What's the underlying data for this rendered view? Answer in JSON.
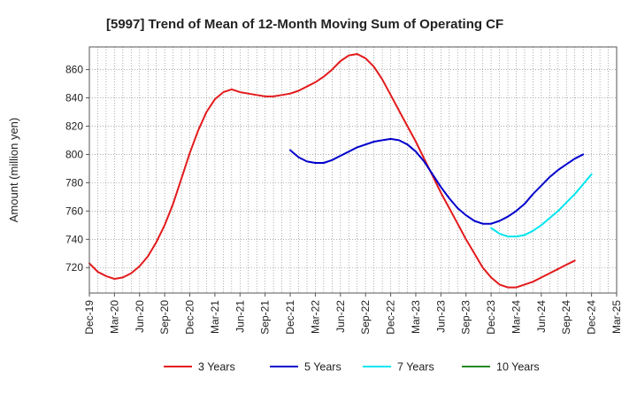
{
  "chart_data": {
    "type": "line",
    "title": "[5997]  Trend of Mean of 12-Month Moving Sum of Operating CF",
    "xlabel": "",
    "ylabel": "Amount (million yen)",
    "ylim": [
      702,
      876
    ],
    "yticks": [
      720,
      740,
      760,
      780,
      800,
      820,
      840,
      860
    ],
    "grid": true,
    "legend_position": "bottom",
    "x_tick_labels": [
      "Dec-19",
      "Mar-20",
      "Jun-20",
      "Sep-20",
      "Dec-20",
      "Mar-21",
      "Jun-21",
      "Sep-21",
      "Dec-21",
      "Mar-22",
      "Jun-22",
      "Sep-22",
      "Dec-22",
      "Mar-23",
      "Jun-23",
      "Sep-23",
      "Dec-23",
      "Mar-24",
      "Jun-24",
      "Sep-24",
      "Dec-24",
      "Mar-25"
    ],
    "x_months": [
      "2019-12",
      "2020-01",
      "2020-02",
      "2020-03",
      "2020-04",
      "2020-05",
      "2020-06",
      "2020-07",
      "2020-08",
      "2020-09",
      "2020-10",
      "2020-11",
      "2020-12",
      "2021-01",
      "2021-02",
      "2021-03",
      "2021-04",
      "2021-05",
      "2021-06",
      "2021-07",
      "2021-08",
      "2021-09",
      "2021-10",
      "2021-11",
      "2021-12",
      "2022-01",
      "2022-02",
      "2022-03",
      "2022-04",
      "2022-05",
      "2022-06",
      "2022-07",
      "2022-08",
      "2022-09",
      "2022-10",
      "2022-11",
      "2022-12",
      "2023-01",
      "2023-02",
      "2023-03",
      "2023-04",
      "2023-05",
      "2023-06",
      "2023-07",
      "2023-08",
      "2023-09",
      "2023-10",
      "2023-11",
      "2023-12",
      "2024-01",
      "2024-02",
      "2024-03",
      "2024-04",
      "2024-05",
      "2024-06",
      "2024-07",
      "2024-08",
      "2024-09",
      "2024-10",
      "2024-11",
      "2024-12"
    ],
    "series": [
      {
        "name": "3 Years",
        "color": "#e31a1c",
        "start_index": 0,
        "values": [
          723,
          717,
          714,
          712,
          713,
          716,
          721,
          728,
          738,
          750,
          765,
          783,
          801,
          817,
          830,
          839,
          844,
          846,
          844,
          843,
          842,
          841,
          841,
          842,
          843,
          845,
          848,
          851,
          855,
          860,
          866,
          870,
          871,
          868,
          862,
          853,
          842,
          831,
          820,
          809,
          797,
          785,
          773,
          762,
          751,
          740,
          730,
          720,
          713,
          708,
          706,
          706,
          708,
          710,
          713,
          716,
          719,
          722,
          725
        ]
      },
      {
        "name": "5 Years",
        "color": "#0000cc",
        "start_index": 24,
        "values": [
          803,
          798,
          795,
          794,
          794,
          796,
          799,
          802,
          805,
          807,
          809,
          810,
          811,
          810,
          807,
          802,
          795,
          786,
          777,
          769,
          762,
          757,
          753,
          751,
          751,
          753,
          756,
          760,
          765,
          772,
          778,
          784,
          789,
          793,
          797,
          800
        ]
      },
      {
        "name": "7 Years",
        "color": "#00e5ee",
        "start_index": 48,
        "values": [
          748,
          744,
          742,
          742,
          743,
          746,
          750,
          755,
          760,
          766,
          772,
          779,
          786
        ]
      },
      {
        "name": "10 Years",
        "color": "#228b22",
        "start_index": null,
        "values": []
      }
    ]
  }
}
